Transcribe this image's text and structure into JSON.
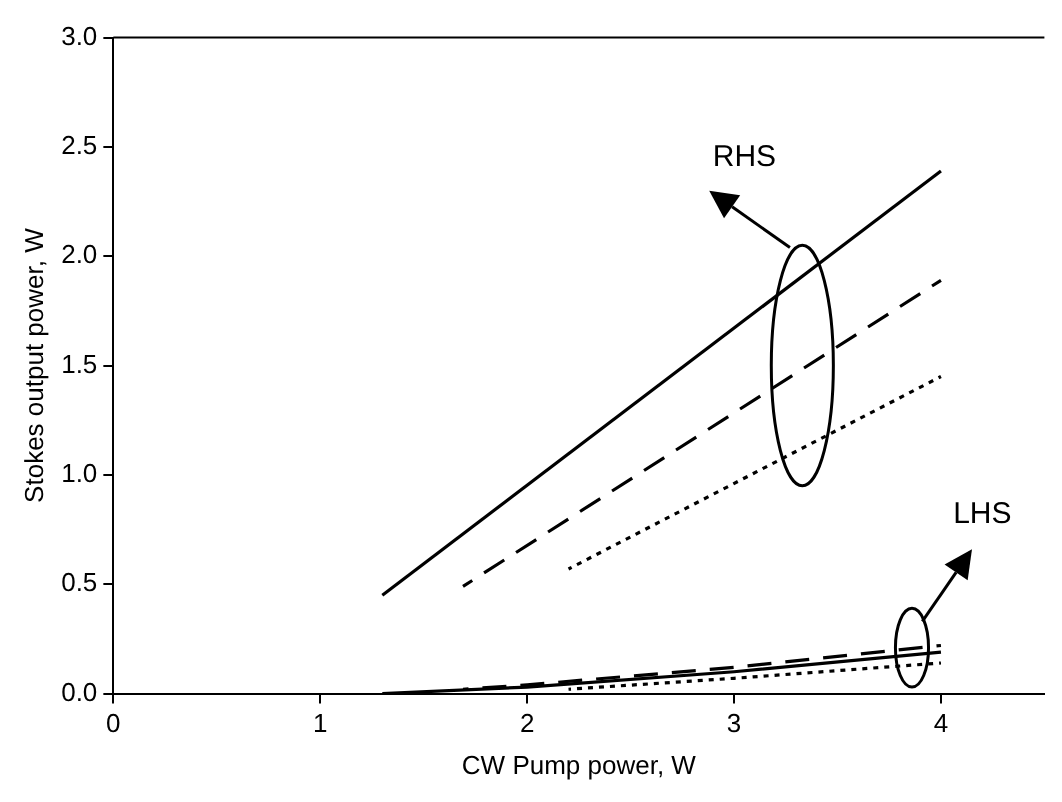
{
  "chart_data": {
    "type": "line",
    "xlabel": "CW Pump power, W",
    "ylabel": "Stokes output power, W",
    "xlim": [
      0,
      4.5
    ],
    "ylim": [
      0,
      3
    ],
    "xticks": [
      0,
      1,
      2,
      3,
      4
    ],
    "yticks": [
      {
        "value": 0,
        "label": "0.0"
      },
      {
        "value": 0.5,
        "label": "0.5"
      },
      {
        "value": 1,
        "label": "1.0"
      },
      {
        "value": 1.5,
        "label": "1.5"
      },
      {
        "value": 2,
        "label": "2.0"
      },
      {
        "value": 2.5,
        "label": "2.5"
      },
      {
        "value": 3,
        "label": "3.0"
      }
    ],
    "grid": false,
    "legend": false,
    "marker": "none",
    "series": [
      {
        "color": "#000000",
        "line_style": "solid",
        "x": [
          1.3,
          4
        ],
        "values": [
          0.45,
          2.39
        ]
      },
      {
        "color": "#000000",
        "line_style": "dashed",
        "x": [
          1.69,
          4
        ],
        "values": [
          0.49,
          1.89
        ]
      },
      {
        "color": "#000000",
        "line_style": "dotted",
        "x": [
          2.2,
          4
        ],
        "values": [
          0.57,
          1.45
        ]
      },
      {
        "color": "#000000",
        "line_style": "solid",
        "x": [
          1.3,
          2,
          3,
          4
        ],
        "values": [
          0,
          0.03,
          0.1,
          0.19
        ]
      },
      {
        "color": "#000000",
        "line_style": "dashed",
        "x": [
          1.69,
          2,
          3,
          4
        ],
        "values": [
          0.02,
          0.04,
          0.12,
          0.22
        ]
      },
      {
        "color": "#000000",
        "line_style": "dotted",
        "x": [
          2.2,
          3,
          4
        ],
        "values": [
          0.02,
          0.07,
          0.14
        ]
      }
    ],
    "annotations": [
      "RHS",
      "LHS"
    ]
  }
}
